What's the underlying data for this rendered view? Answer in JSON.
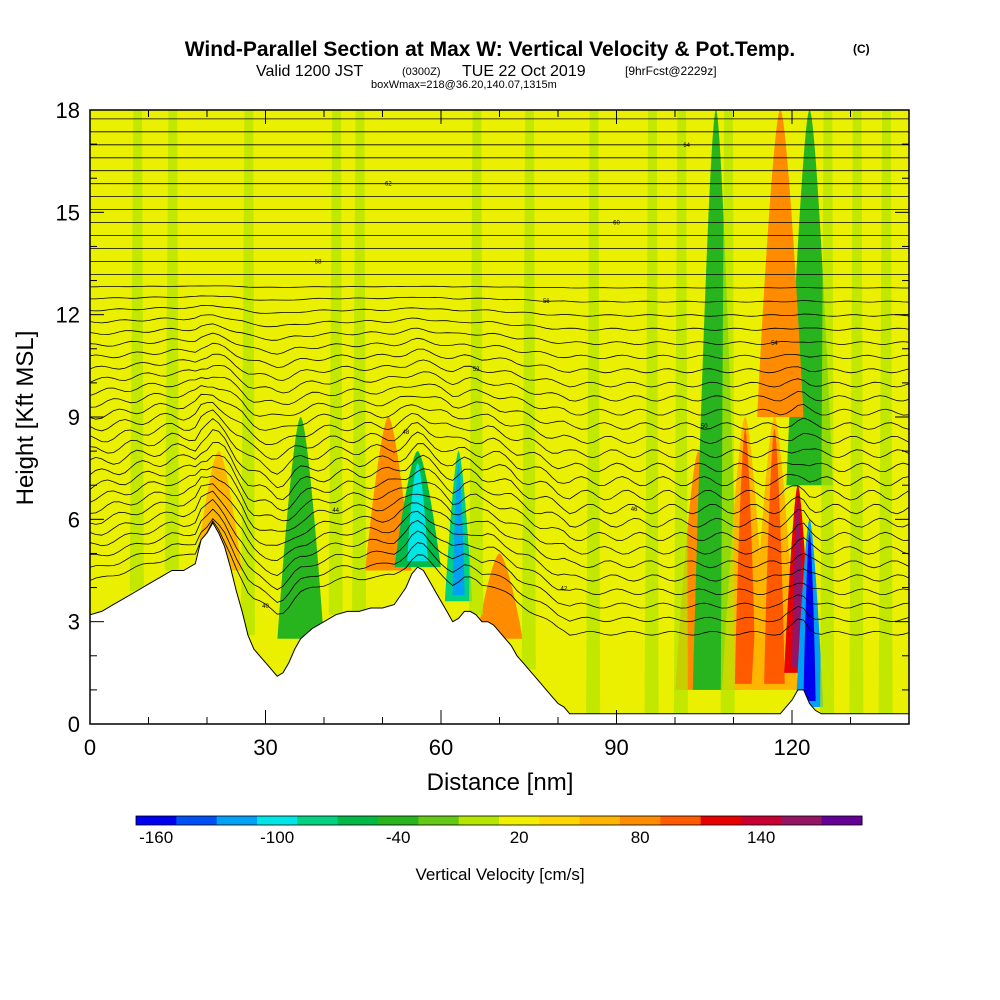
{
  "title": {
    "main": "Wind-Parallel Section at Max W: Vertical Velocity & Pot.Temp.",
    "copyright": "(C)",
    "valid_prefix": "Valid 1200 JST",
    "valid_utc": "(0300Z)",
    "valid_date": "TUE 22 Oct 2019",
    "forecast": "[9hrFcst@2229z]",
    "box_info": "boxWmax=218@36.20,140.07,1315m"
  },
  "chart_data": {
    "type": "heatmap",
    "xlabel": "Distance [nm]",
    "ylabel": "Height [Kft MSL]",
    "xlim": [
      0,
      140
    ],
    "ylim": [
      0,
      18
    ],
    "x_ticks": [
      0,
      30,
      60,
      90,
      120
    ],
    "y_ticks": [
      0,
      3,
      6,
      9,
      12,
      15,
      18
    ],
    "terrain_kft": [
      [
        0,
        3.2
      ],
      [
        2,
        3.3
      ],
      [
        4,
        3.5
      ],
      [
        6,
        3.7
      ],
      [
        8,
        3.9
      ],
      [
        10,
        4.1
      ],
      [
        12,
        4.3
      ],
      [
        14,
        4.5
      ],
      [
        16,
        4.5
      ],
      [
        18,
        4.7
      ],
      [
        19,
        5.4
      ],
      [
        20,
        5.6
      ],
      [
        21,
        5.9
      ],
      [
        22,
        5.6
      ],
      [
        23,
        5.2
      ],
      [
        24,
        4.6
      ],
      [
        25,
        3.9
      ],
      [
        26,
        3.3
      ],
      [
        27,
        2.6
      ],
      [
        28,
        2.2
      ],
      [
        29,
        2.0
      ],
      [
        30,
        1.8
      ],
      [
        31,
        1.6
      ],
      [
        32,
        1.4
      ],
      [
        33,
        1.5
      ],
      [
        34,
        1.8
      ],
      [
        35,
        2.2
      ],
      [
        36,
        2.5
      ],
      [
        38,
        2.8
      ],
      [
        40,
        3.0
      ],
      [
        42,
        3.2
      ],
      [
        44,
        3.3
      ],
      [
        46,
        3.3
      ],
      [
        48,
        3.4
      ],
      [
        50,
        3.4
      ],
      [
        52,
        3.5
      ],
      [
        54,
        4.0
      ],
      [
        55,
        4.4
      ],
      [
        56,
        4.6
      ],
      [
        57,
        4.5
      ],
      [
        58,
        4.2
      ],
      [
        59,
        3.9
      ],
      [
        60,
        3.6
      ],
      [
        61,
        3.3
      ],
      [
        62,
        3.0
      ],
      [
        63,
        3.1
      ],
      [
        64,
        3.3
      ],
      [
        65,
        3.3
      ],
      [
        66,
        3.2
      ],
      [
        67,
        3.0
      ],
      [
        68,
        3.0
      ],
      [
        69,
        2.9
      ],
      [
        70,
        2.7
      ],
      [
        71,
        2.5
      ],
      [
        72,
        2.3
      ],
      [
        73,
        2.0
      ],
      [
        74,
        1.8
      ],
      [
        75,
        1.6
      ],
      [
        76,
        1.4
      ],
      [
        77,
        1.2
      ],
      [
        78,
        1.0
      ],
      [
        79,
        0.8
      ],
      [
        80,
        0.6
      ],
      [
        81,
        0.5
      ],
      [
        82,
        0.3
      ],
      [
        90,
        0.3
      ],
      [
        100,
        0.3
      ],
      [
        110,
        0.3
      ],
      [
        118,
        0.3
      ],
      [
        119,
        0.5
      ],
      [
        120,
        0.7
      ],
      [
        121,
        1.0
      ],
      [
        122,
        1.0
      ],
      [
        123,
        0.6
      ],
      [
        124,
        0.4
      ],
      [
        125,
        0.3
      ],
      [
        140,
        0.3
      ]
    ],
    "vertical_velocity_features": [
      {
        "x": 22,
        "z_bottom": 4.5,
        "z_top": 8.0,
        "w": 60
      },
      {
        "x": 36,
        "z_bottom": 2.5,
        "z_top": 9.0,
        "w": -40
      },
      {
        "x": 51,
        "z_bottom": 4.5,
        "z_top": 9.0,
        "w": 80
      },
      {
        "x": 56,
        "z_bottom": 4.6,
        "z_top": 8.0,
        "w": -100
      },
      {
        "x": 63,
        "z_bottom": 3.6,
        "z_top": 8.0,
        "w": -120
      },
      {
        "x": 70,
        "z_bottom": 2.5,
        "z_top": 5.0,
        "w": 80
      },
      {
        "x": 104,
        "z_bottom": 1.0,
        "z_top": 8.0,
        "w": 80
      },
      {
        "x": 107,
        "z_bottom": 1.0,
        "z_top": 18.0,
        "w": -40
      },
      {
        "x": 112,
        "z_bottom": 1.0,
        "z_top": 9.0,
        "w": 100
      },
      {
        "x": 117,
        "z_bottom": 1.0,
        "z_top": 9.0,
        "w": 100
      },
      {
        "x": 121,
        "z_bottom": 1.5,
        "z_top": 7.0,
        "w": 160
      },
      {
        "x": 123,
        "z_bottom": 0.5,
        "z_top": 6.0,
        "w": -160
      },
      {
        "x": 123,
        "z_bottom": 7.0,
        "z_top": 18.0,
        "w": -40
      },
      {
        "x": 118,
        "z_bottom": 9.0,
        "z_top": 18.0,
        "w": 80
      }
    ],
    "theta_contour_labels": [
      "40",
      "42",
      "44",
      "46",
      "48",
      "50",
      "52",
      "54",
      "56",
      "58",
      "60",
      "62",
      "64",
      "66"
    ],
    "colorbar": {
      "title": "Vertical Velocity [cm/s]",
      "label_values": [
        -160,
        -100,
        -40,
        20,
        80,
        140
      ],
      "labels": [
        "-160",
        "-100",
        "-40",
        "20",
        "80",
        "140"
      ],
      "levels": [
        -160,
        -140,
        -120,
        -100,
        -80,
        -60,
        -40,
        -20,
        0,
        20,
        40,
        60,
        80,
        100,
        120,
        140,
        160,
        180
      ],
      "colors": [
        "#0000f0",
        "#0050f5",
        "#00a0f5",
        "#00e6e6",
        "#00d282",
        "#00b946",
        "#28b41e",
        "#64c814",
        "#b4e600",
        "#f0f000",
        "#ffd700",
        "#ffb400",
        "#ff8c00",
        "#ff5a00",
        "#e60000",
        "#c80032",
        "#961464",
        "#640096"
      ]
    }
  }
}
